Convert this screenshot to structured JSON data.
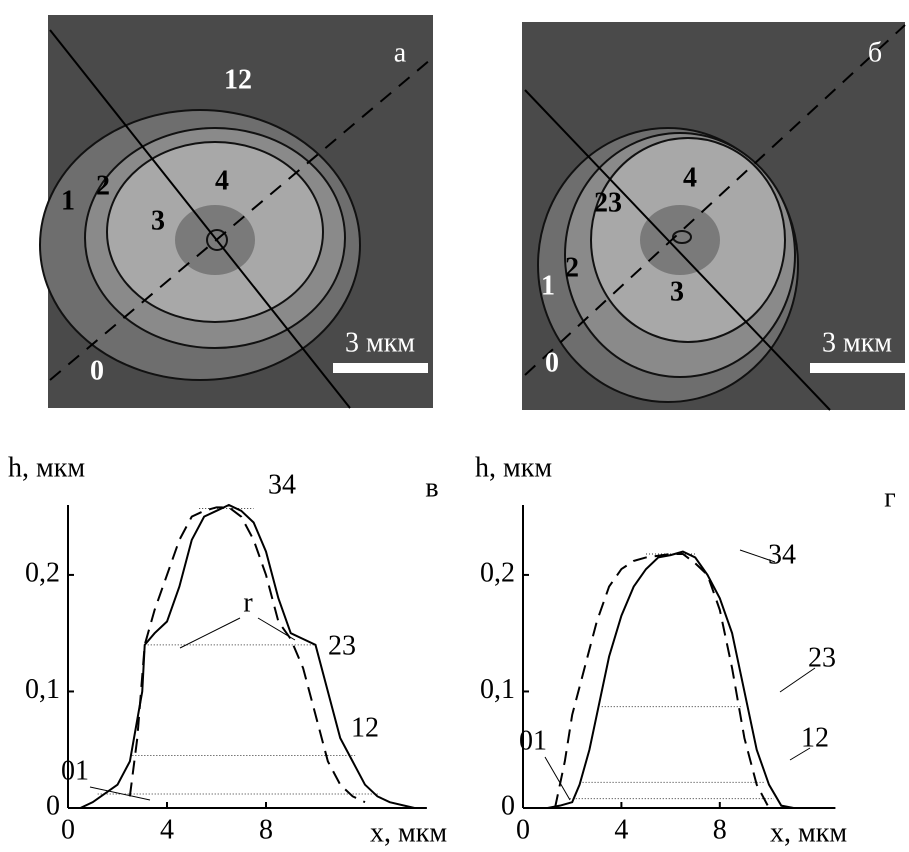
{
  "images": [
    {
      "panel": "а",
      "labels": [
        "12",
        "1",
        "2",
        "3",
        "4",
        "0"
      ],
      "scale": "3 мкм"
    },
    {
      "panel": "б",
      "labels": [
        "23",
        "1",
        "2",
        "3",
        "4",
        "0"
      ],
      "scale": "3 мкм"
    }
  ],
  "chart_data": [
    {
      "type": "line",
      "title": "в",
      "x_label": "x, мкм",
      "y_label": "h, мкм",
      "xlim": [
        0,
        14.5
      ],
      "ylim": [
        0,
        0.26
      ],
      "xticks": [
        0,
        4,
        8
      ],
      "yticks": [
        0,
        {
          "value": 0.1,
          "label": "0,1"
        },
        {
          "value": 0.2,
          "label": "0,2"
        }
      ],
      "annotations": [
        "34",
        "r",
        "23",
        "12",
        "01"
      ],
      "series": [
        {
          "color": "#000000",
          "dash": false,
          "x": [
            0.5,
            1,
            2,
            2.5,
            3,
            3.1,
            3.5,
            4,
            4.5,
            5,
            5.5,
            6,
            6.5,
            7,
            7.5,
            8,
            8.5,
            9,
            9.5,
            10,
            10.5,
            11,
            11.5,
            12,
            12.5,
            13,
            14
          ],
          "values": [
            0,
            0.005,
            0.02,
            0.04,
            0.1,
            0.14,
            0.15,
            0.16,
            0.19,
            0.23,
            0.25,
            0.255,
            0.26,
            0.255,
            0.245,
            0.22,
            0.18,
            0.15,
            0.145,
            0.14,
            0.1,
            0.06,
            0.04,
            0.02,
            0.01,
            0.005,
            0
          ]
        },
        {
          "color": "#000000",
          "dash": true,
          "x": [
            2.5,
            2.8,
            3.1,
            3.5,
            4,
            4.5,
            5,
            5.5,
            6,
            6.5,
            7,
            7.5,
            8,
            8.5,
            9,
            9.5,
            10,
            10.5,
            11,
            11.5,
            12
          ],
          "values": [
            0.01,
            0.06,
            0.14,
            0.17,
            0.2,
            0.23,
            0.25,
            0.255,
            0.258,
            0.258,
            0.25,
            0.23,
            0.2,
            0.16,
            0.145,
            0.12,
            0.08,
            0.04,
            0.02,
            0.01,
            0.005
          ]
        }
      ],
      "levels": [
        {
          "y": 0.257,
          "x": [
            5.3,
            7.5
          ]
        },
        {
          "y": 0.14,
          "x": [
            3.1,
            10
          ]
        },
        {
          "y": 0.045,
          "x": [
            2.6,
            11.6
          ]
        },
        {
          "y": 0.012,
          "x": [
            1.2,
            12.6
          ]
        }
      ]
    },
    {
      "type": "line",
      "title": "г",
      "x_label": "x, мкм",
      "y_label": "h, мкм",
      "xlim": [
        0,
        12.7
      ],
      "ylim": [
        0,
        0.26
      ],
      "xticks": [
        0,
        4,
        8
      ],
      "yticks": [
        0,
        {
          "value": 0.1,
          "label": "0,1"
        },
        {
          "value": 0.2,
          "label": "0,2"
        }
      ],
      "annotations": [
        "34",
        "23",
        "12",
        "01"
      ],
      "series": [
        {
          "color": "#000000",
          "dash": false,
          "x": [
            1,
            1.5,
            2,
            2.3,
            2.7,
            3,
            3.5,
            4,
            4.5,
            5,
            5.5,
            6,
            6.5,
            7,
            7.5,
            8,
            8.5,
            9,
            9.5,
            10,
            10.5,
            11
          ],
          "values": [
            0,
            0.002,
            0.005,
            0.02,
            0.05,
            0.08,
            0.13,
            0.165,
            0.19,
            0.205,
            0.215,
            0.217,
            0.22,
            0.215,
            0.2,
            0.18,
            0.15,
            0.1,
            0.05,
            0.02,
            0.002,
            0
          ]
        },
        {
          "color": "#000000",
          "dash": true,
          "x": [
            1.3,
            1.7,
            2,
            2.5,
            3,
            3.5,
            4,
            4.5,
            5,
            6,
            6.5,
            7,
            7.5,
            8,
            8.5,
            9,
            9.5,
            10
          ],
          "values": [
            0,
            0.04,
            0.08,
            0.12,
            0.16,
            0.19,
            0.205,
            0.212,
            0.215,
            0.218,
            0.218,
            0.21,
            0.2,
            0.17,
            0.12,
            0.06,
            0.02,
            0
          ]
        }
      ],
      "levels": [
        {
          "y": 0.218,
          "x": [
            5,
            7
          ]
        },
        {
          "y": 0.087,
          "x": [
            3.2,
            8.9
          ]
        },
        {
          "y": 0.022,
          "x": [
            2.3,
            9.8
          ]
        },
        {
          "y": 0.008,
          "x": [
            1.9,
            10.2
          ]
        }
      ]
    }
  ]
}
